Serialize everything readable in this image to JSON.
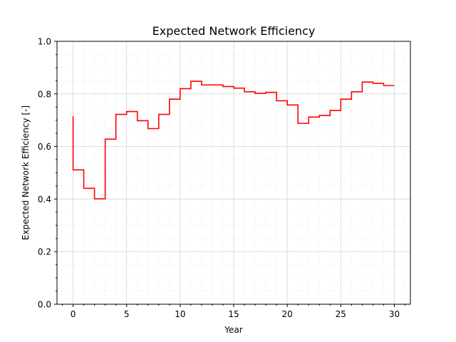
{
  "chart_data": {
    "type": "line",
    "drawstyle": "steps-post",
    "title": "Expected Network Efficiency",
    "xlabel": "Year",
    "ylabel": "Expected Network Efficiency [-]",
    "xlim": [
      -1.5,
      31.5
    ],
    "ylim": [
      0.0,
      1.0
    ],
    "xticks": [
      0,
      5,
      10,
      15,
      20,
      25,
      30
    ],
    "yticks": [
      0.0,
      0.2,
      0.4,
      0.6,
      0.8,
      1.0
    ],
    "xtick_labels": [
      "0",
      "5",
      "10",
      "15",
      "20",
      "25",
      "30"
    ],
    "ytick_labels": [
      "0.0",
      "0.2",
      "0.4",
      "0.6",
      "0.8",
      "1.0"
    ],
    "grid": true,
    "minor_grid": true,
    "series": [
      {
        "color": "#ff0000",
        "x": [
          0,
          0,
          1,
          2,
          3,
          4,
          5,
          6,
          7,
          8,
          9,
          10,
          11,
          12,
          13,
          14,
          15,
          16,
          17,
          18,
          19,
          20,
          21,
          22,
          23,
          24,
          25,
          26,
          27,
          28,
          29,
          30
        ],
        "y": [
          0.715,
          0.511,
          0.441,
          0.401,
          0.628,
          0.722,
          0.733,
          0.698,
          0.668,
          0.722,
          0.78,
          0.82,
          0.848,
          0.834,
          0.834,
          0.828,
          0.822,
          0.808,
          0.802,
          0.806,
          0.774,
          0.758,
          0.688,
          0.712,
          0.718,
          0.737,
          0.78,
          0.808,
          0.845,
          0.84,
          0.832,
          0.832
        ]
      }
    ]
  }
}
